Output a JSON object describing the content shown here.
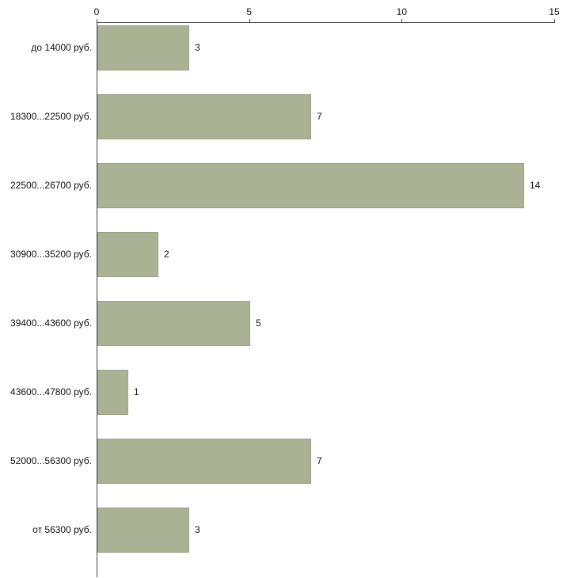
{
  "chart_data": {
    "type": "bar",
    "orientation": "horizontal",
    "title": "",
    "xlabel": "",
    "ylabel": "",
    "categories": [
      "до 14000 руб.",
      "18300...22500 руб.",
      "22500...26700 руб.",
      "30900...35200 руб.",
      "39400...43600 руб.",
      "43600...47800 руб.",
      "52000...56300 руб.",
      "от 56300 руб."
    ],
    "values": [
      3,
      7,
      14,
      2,
      5,
      1,
      7,
      3
    ],
    "value_labels": [
      "3",
      "7",
      "14",
      "2",
      "5",
      "1",
      "7",
      "3"
    ],
    "xlim": [
      0,
      15
    ],
    "x_ticks": [
      0,
      5,
      10,
      15
    ],
    "x_tick_labels": [
      "0",
      "5",
      "10",
      "15"
    ],
    "axis_position": "top",
    "grid": false,
    "legend": false,
    "bar_color": "#abb294",
    "bar_border_color": "#9aa287",
    "axis_color": "#444444",
    "text_color": "#111111",
    "background_color": "#ffffff"
  }
}
